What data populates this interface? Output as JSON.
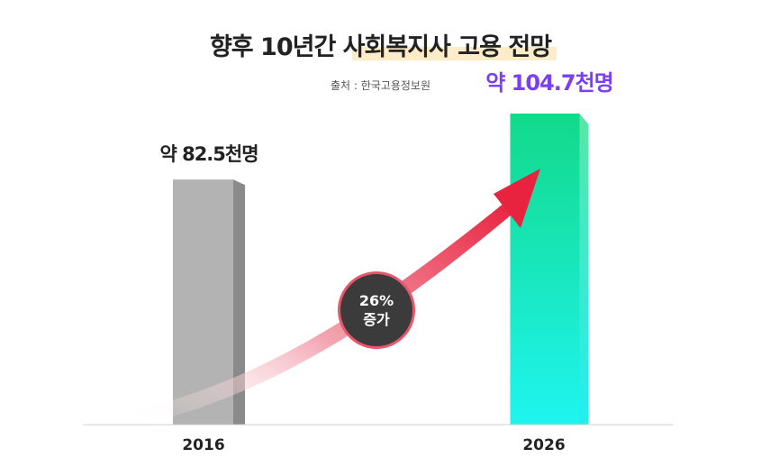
{
  "title": "향후 10년간 사회복지사 고용 전망",
  "source": "출처 : 한국고용정보원",
  "badge": {
    "line1": "26%",
    "line2": "증가"
  },
  "chart_data": {
    "type": "bar",
    "categories": [
      "2016",
      "2026"
    ],
    "values": [
      82.5,
      104.7
    ],
    "data_labels": [
      "약 82.5천명",
      "약 104.7천명"
    ],
    "unit": "천명",
    "ylim": [
      0,
      115
    ],
    "grid": false,
    "colors": {
      "bar_2016_front": "#b3b3b3",
      "bar_2016_side": "#8a8a8a",
      "bar_2026_top": "#12d98a",
      "bar_2026_bottom": "#1df5f0",
      "label_2016": "#222222",
      "label_2026": "#7b3ff2",
      "arrow": "#e8233f"
    },
    "annotation": "26% 증가"
  }
}
